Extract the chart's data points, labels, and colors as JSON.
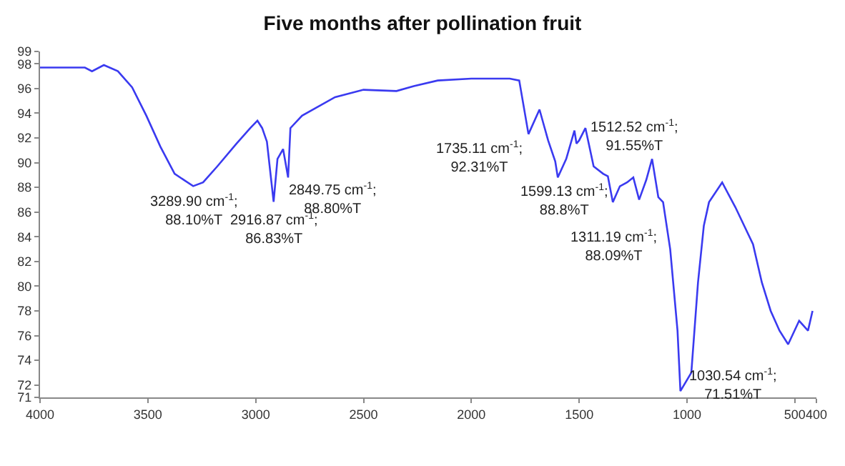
{
  "chart_data": {
    "type": "line",
    "title": "Five months after pollination fruit",
    "x": [
      4000,
      3792,
      3759,
      3704,
      3639,
      3573,
      3507,
      3442,
      3376,
      3289.9,
      3244,
      3178,
      3091,
      3025,
      2992,
      2970,
      2948,
      2916.87,
      2899,
      2873,
      2849.75,
      2839,
      2785,
      2632,
      2500,
      2347,
      2267,
      2156,
      2000,
      1822,
      1778,
      1735.11,
      1684,
      1644,
      1611,
      1599.13,
      1560,
      1522,
      1512.52,
      1500,
      1471,
      1433,
      1389,
      1367,
      1344,
      1311.19,
      1278,
      1249,
      1222,
      1189,
      1162,
      1133,
      1111,
      1078,
      1044,
      1030.54,
      980,
      949,
      922,
      898,
      837,
      776,
      735,
      694,
      653,
      612,
      571,
      531,
      480,
      439,
      418
    ],
    "series": [
      {
        "color": "#3a3af0",
        "values": [
          97.7,
          97.7,
          97.4,
          97.9,
          97.4,
          96.1,
          93.8,
          91.3,
          89.1,
          88.1,
          88.4,
          89.7,
          91.5,
          92.8,
          93.4,
          92.8,
          91.7,
          86.83,
          90.3,
          91.1,
          88.8,
          92.8,
          93.8,
          95.3,
          95.9,
          95.8,
          96.2,
          96.65,
          96.8,
          96.8,
          96.65,
          92.31,
          94.3,
          91.8,
          90.1,
          88.8,
          90.3,
          92.6,
          91.55,
          91.8,
          92.8,
          89.7,
          89.1,
          88.9,
          86.8,
          88.09,
          88.4,
          88.8,
          87.0,
          88.6,
          90.3,
          87.2,
          86.8,
          83.0,
          76.4,
          71.51,
          73.0,
          80.3,
          84.9,
          86.8,
          88.4,
          86.4,
          84.9,
          83.4,
          80.3,
          78.0,
          76.4,
          75.3,
          77.2,
          76.4,
          78.0
        ]
      }
    ],
    "xlim": [
      4000,
      400
    ],
    "xticks": [
      4000,
      3500,
      3000,
      2500,
      2000,
      1500,
      1000,
      500,
      400
    ],
    "ylim": [
      71,
      99
    ],
    "yticks": [
      71,
      72,
      74,
      76,
      78,
      80,
      82,
      84,
      86,
      88,
      90,
      92,
      94,
      96,
      98,
      99
    ],
    "legend": false,
    "marker": "none",
    "line_style": "solid",
    "annotations": [
      {
        "text": "3289.90 cm$^{-1}$;\n88.10%T",
        "x": 3289.9,
        "y": 88.1
      },
      {
        "text": "2916.87 cm$^{-1}$;\n86.83%T",
        "x": 2916.87,
        "y": 86.83
      },
      {
        "text": "2849.75 cm$^{-1}$;\n88.80%T",
        "x": 2849.75,
        "y": 88.8
      },
      {
        "text": "1735.11 cm$^{-1}$;\n92.31%T",
        "x": 1735.11,
        "y": 92.31
      },
      {
        "text": "1599.13 cm$^{-1}$;\n88.8%T",
        "x": 1599.13,
        "y": 88.8
      },
      {
        "text": "1512.52 cm$^{-1}$;\n91.55%T",
        "x": 1512.52,
        "y": 91.55
      },
      {
        "text": "1311.19 cm$^{-1}$;\n88.09%T",
        "x": 1311.19,
        "y": 88.09
      },
      {
        "text": "1030.54 cm$^{-1}$;\n71.51%T",
        "x": 1030.54,
        "y": 71.51
      }
    ]
  }
}
